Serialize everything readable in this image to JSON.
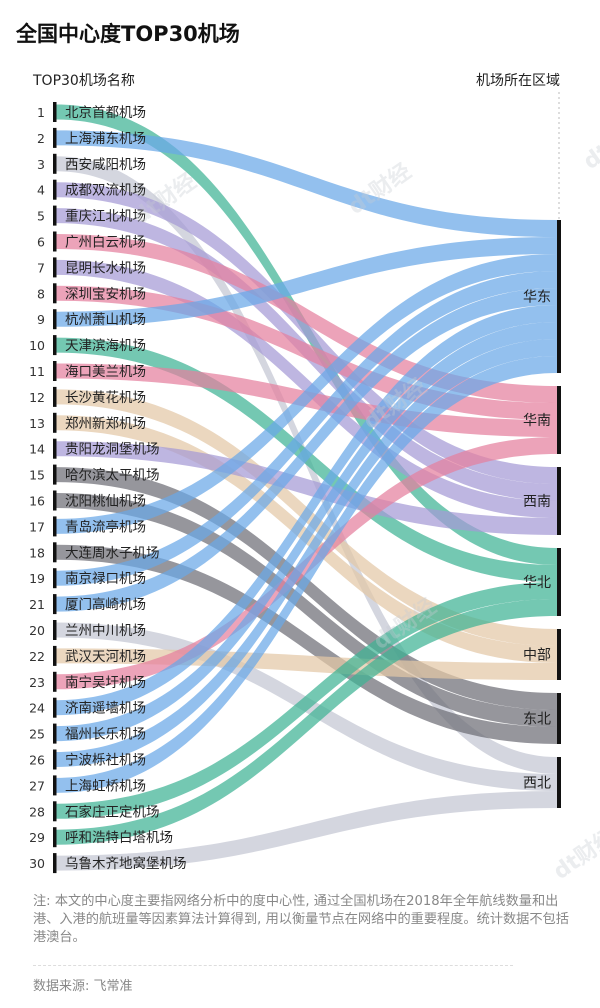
{
  "title": "全国中心度TOP30机场",
  "left_header": "TOP30机场名称",
  "right_header": "机场所在区域",
  "note": "注: 本文的中心度主要指网络分析中的度中心性, 通过全国机场在2018年全年航线数量和出港、入港的航班量等因素算法计算得到, 用以衡量节点在网络中的重要程度。统计数据不包括港澳台。",
  "source": "数据来源: 飞常准",
  "watermark": "dt财经",
  "colors": {
    "华东": "#6aa8e8",
    "华南": "#e47f9e",
    "西南": "#a59ad6",
    "华北": "#3fb394",
    "中部": "#e3c8a6",
    "东北": "#6e6e76",
    "西北": "#c4c6d2"
  },
  "chart_data": {
    "type": "sankey",
    "regions": [
      "华东",
      "华南",
      "西南",
      "华北",
      "中部",
      "东北",
      "西北"
    ],
    "airports": [
      {
        "rank": "1",
        "name": "北京首都机场",
        "region": "华北"
      },
      {
        "rank": "2",
        "name": "上海浦东机场",
        "region": "华东"
      },
      {
        "rank": "3",
        "name": "西安咸阳机场",
        "region": "西北"
      },
      {
        "rank": "4",
        "name": "成都双流机场",
        "region": "西南"
      },
      {
        "rank": "5",
        "name": "重庆江北机场",
        "region": "西南"
      },
      {
        "rank": "6",
        "name": "广州白云机场",
        "region": "华南"
      },
      {
        "rank": "7",
        "name": "昆明长水机场",
        "region": "西南"
      },
      {
        "rank": "8",
        "name": "深圳宝安机场",
        "region": "华南"
      },
      {
        "rank": "9",
        "name": "杭州萧山机场",
        "region": "华东"
      },
      {
        "rank": "10",
        "name": "天津滨海机场",
        "region": "华北"
      },
      {
        "rank": "11",
        "name": "海口美兰机场",
        "region": "华南"
      },
      {
        "rank": "12",
        "name": "长沙黄花机场",
        "region": "中部"
      },
      {
        "rank": "13",
        "name": "郑州新郑机场",
        "region": "中部"
      },
      {
        "rank": "14",
        "name": "贵阳龙洞堡机场",
        "region": "西南"
      },
      {
        "rank": "15",
        "name": "哈尔滨太平机场",
        "region": "东北"
      },
      {
        "rank": "16",
        "name": "沈阳桃仙机场",
        "region": "东北"
      },
      {
        "rank": "17",
        "name": "青岛流亭机场",
        "region": "华东"
      },
      {
        "rank": "18",
        "name": "大连周水子机场",
        "region": "东北"
      },
      {
        "rank": "19",
        "name": "南京禄口机场",
        "region": "华东"
      },
      {
        "rank": "21",
        "name": "厦门高崎机场",
        "region": "华东"
      },
      {
        "rank": "20",
        "name": "兰州中川机场",
        "region": "西北"
      },
      {
        "rank": "22",
        "name": "武汉天河机场",
        "region": "中部"
      },
      {
        "rank": "23",
        "name": "南宁吴圩机场",
        "region": "华南"
      },
      {
        "rank": "24",
        "name": "济南遥墙机场",
        "region": "华东"
      },
      {
        "rank": "25",
        "name": "福州长乐机场",
        "region": "华东"
      },
      {
        "rank": "26",
        "name": "宁波栎社机场",
        "region": "华东"
      },
      {
        "rank": "27",
        "name": "上海虹桥机场",
        "region": "华东"
      },
      {
        "rank": "28",
        "name": "石家庄正定机场",
        "region": "华北"
      },
      {
        "rank": "29",
        "name": "呼和浩特白塔机场",
        "region": "华北"
      },
      {
        "rank": "30",
        "name": "乌鲁木齐地窝堡机场",
        "region": "西北"
      }
    ]
  }
}
